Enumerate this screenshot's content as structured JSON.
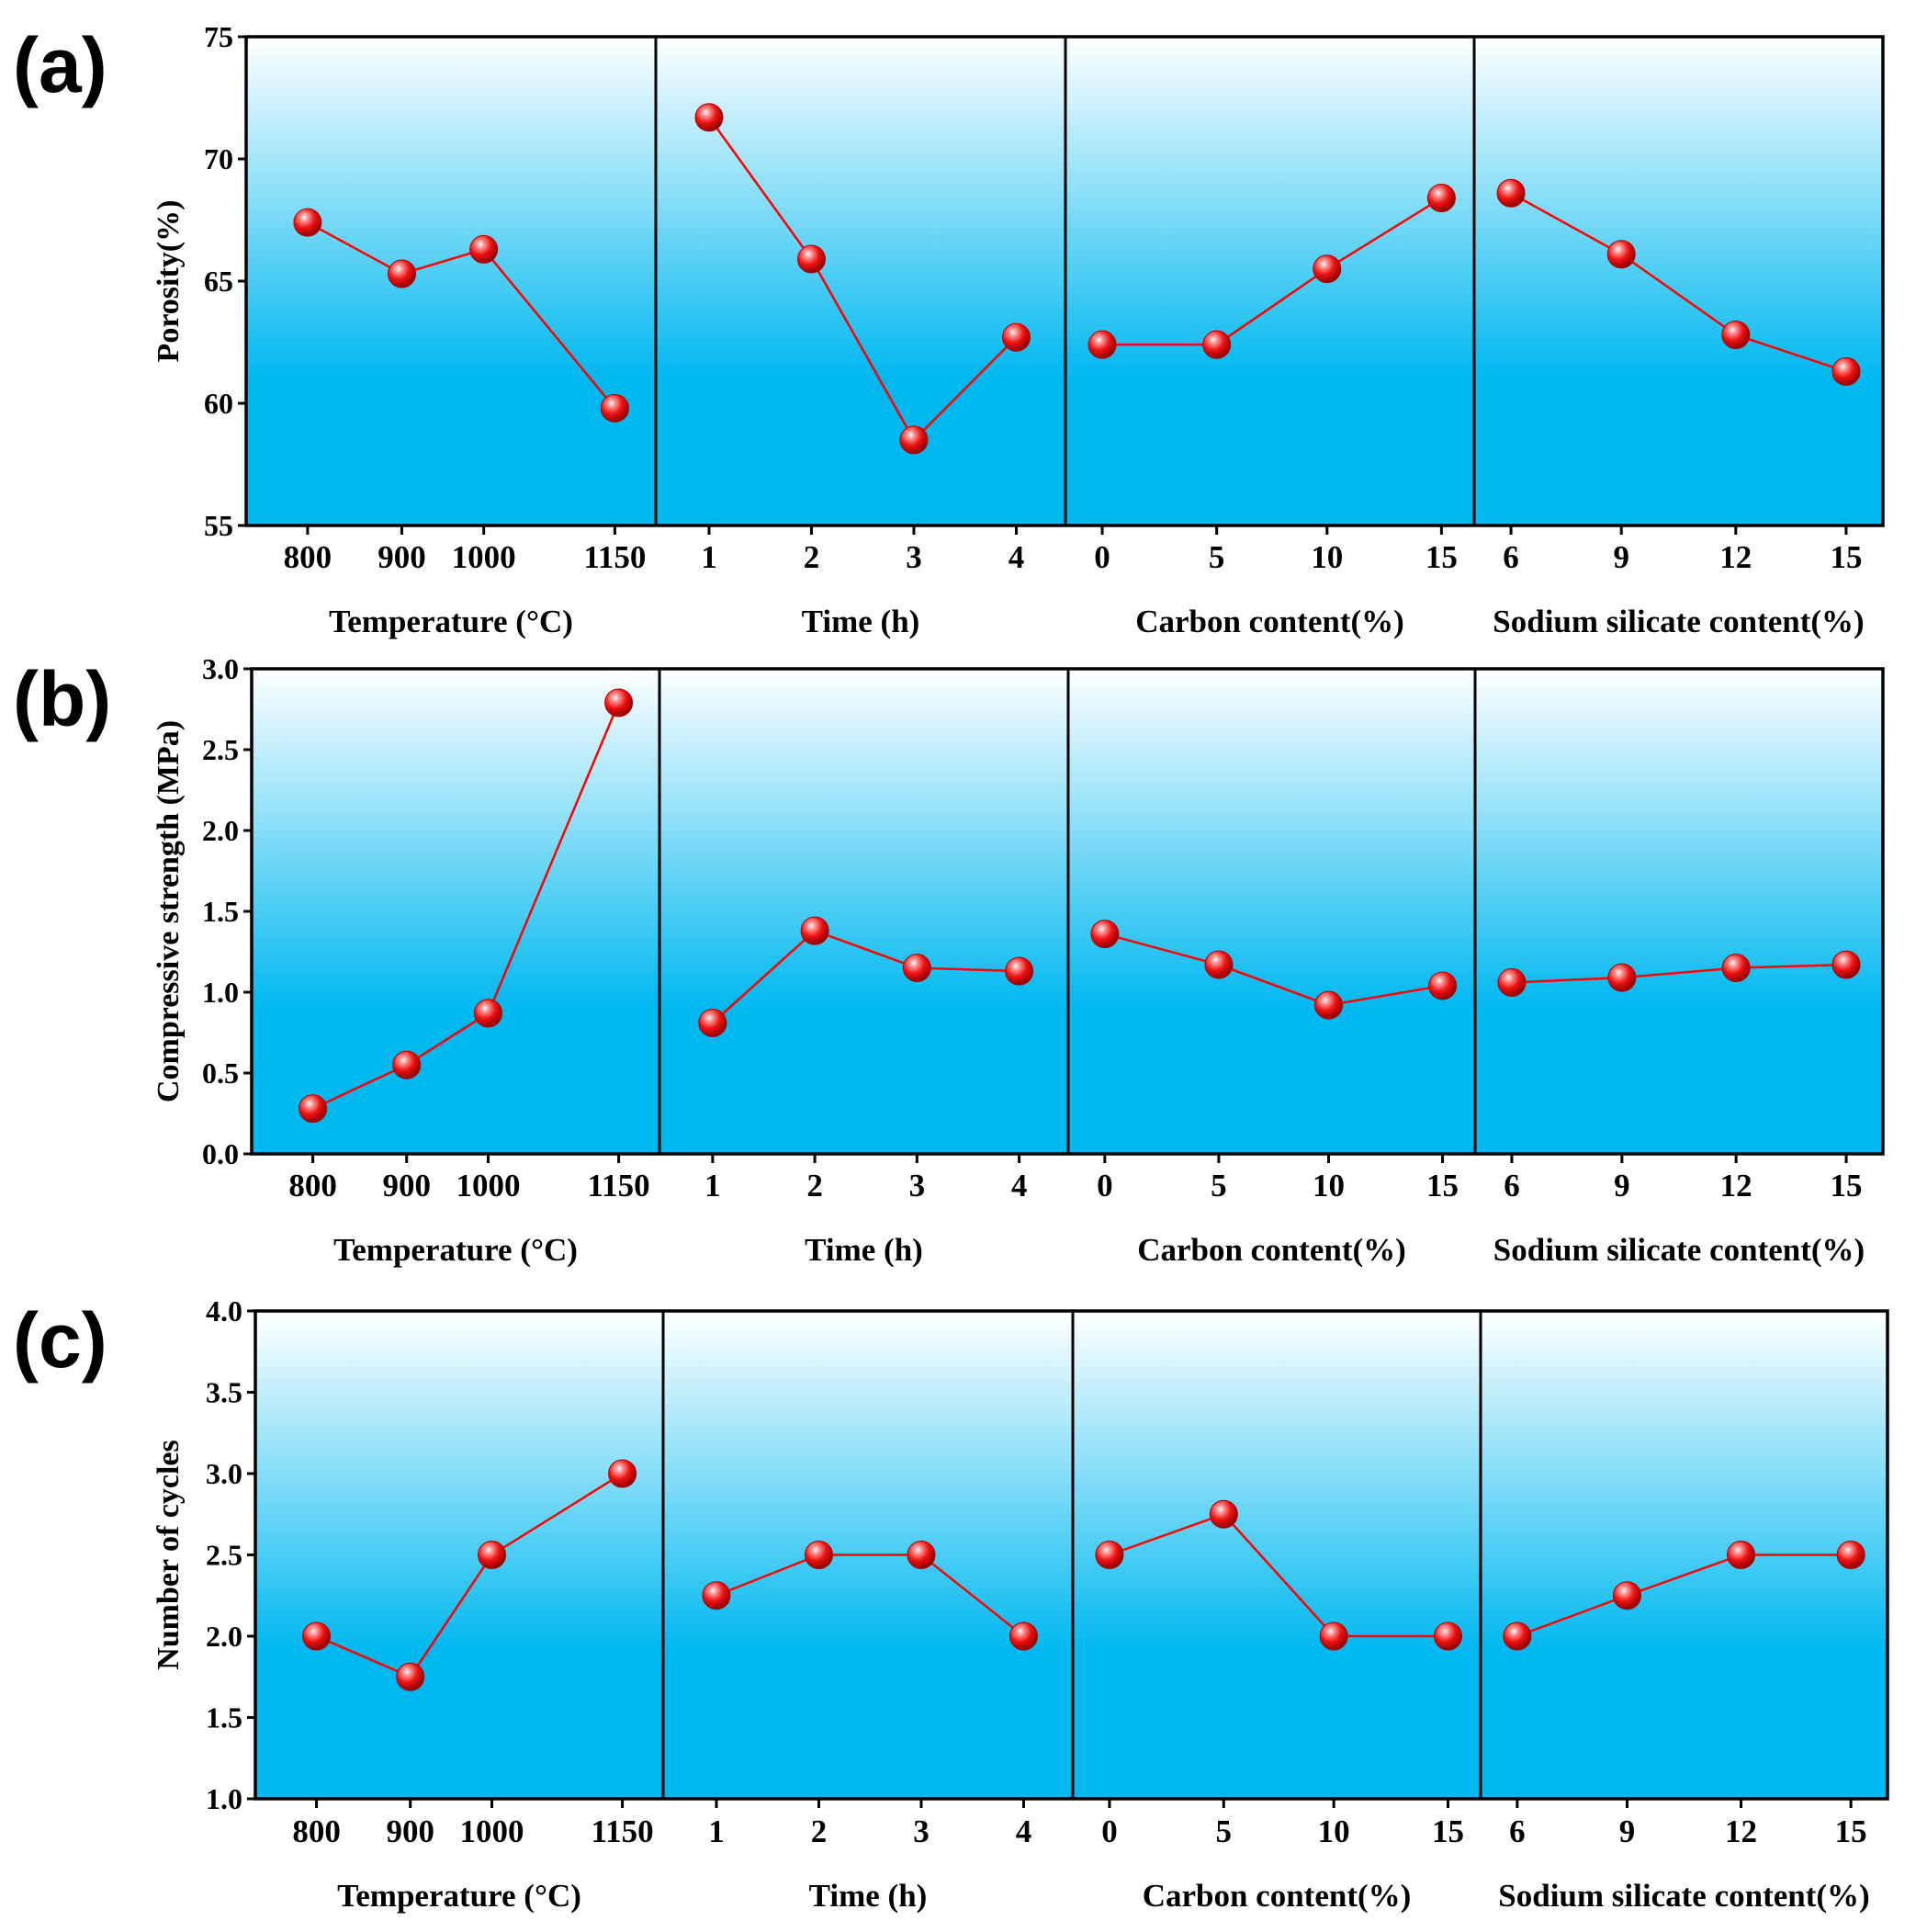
{
  "chart_data": [
    {
      "type": "line",
      "panel_label": "(a)",
      "ylabel": "Porosity(%)",
      "ylim": [
        55,
        75
      ],
      "yticks": [
        55,
        60,
        65,
        70,
        75
      ],
      "subplots": [
        {
          "xlabel": "Temperature (°C)",
          "categories": [
            "800",
            "900",
            "1000",
            "1150"
          ],
          "values": [
            67.4,
            65.3,
            66.3,
            59.8
          ]
        },
        {
          "xlabel": "Time (h)",
          "categories": [
            "1",
            "2",
            "3",
            "4"
          ],
          "values": [
            71.7,
            65.9,
            58.5,
            62.7
          ]
        },
        {
          "xlabel": "Carbon content(%)",
          "categories": [
            "0",
            "5",
            "10",
            "15"
          ],
          "values": [
            62.4,
            62.4,
            65.5,
            68.4
          ]
        },
        {
          "xlabel": "Sodium silicate content(%)",
          "categories": [
            "6",
            "9",
            "12",
            "15"
          ],
          "values": [
            68.6,
            66.1,
            62.8,
            61.3
          ]
        }
      ]
    },
    {
      "type": "line",
      "panel_label": "(b)",
      "ylabel": "Compressive strength (MPa)",
      "ylim": [
        0.0,
        3.0
      ],
      "yticks": [
        "0.0",
        "0.5",
        "1.0",
        "1.5",
        "2.0",
        "2.5",
        "3.0"
      ],
      "subplots": [
        {
          "xlabel": "Temperature (°C)",
          "categories": [
            "800",
            "900",
            "1000",
            "1150"
          ],
          "values": [
            0.28,
            0.55,
            0.87,
            2.79
          ]
        },
        {
          "xlabel": "Time (h)",
          "categories": [
            "1",
            "2",
            "3",
            "4"
          ],
          "values": [
            0.81,
            1.38,
            1.15,
            1.13
          ]
        },
        {
          "xlabel": "Carbon content(%)",
          "categories": [
            "0",
            "5",
            "10",
            "15"
          ],
          "values": [
            1.36,
            1.17,
            0.92,
            1.04
          ]
        },
        {
          "xlabel": "Sodium silicate content(%)",
          "categories": [
            "6",
            "9",
            "12",
            "15"
          ],
          "values": [
            1.06,
            1.09,
            1.15,
            1.17
          ]
        }
      ]
    },
    {
      "type": "line",
      "panel_label": "(c)",
      "ylabel": "Number of cycles",
      "ylim": [
        1.0,
        4.0
      ],
      "yticks": [
        "1.0",
        "1.5",
        "2.0",
        "2.5",
        "3.0",
        "3.5",
        "4.0"
      ],
      "subplots": [
        {
          "xlabel": "Temperature (°C)",
          "categories": [
            "800",
            "900",
            "1000",
            "1150"
          ],
          "values": [
            2.0,
            1.75,
            2.5,
            3.0
          ]
        },
        {
          "xlabel": "Time (h)",
          "categories": [
            "1",
            "2",
            "3",
            "4"
          ],
          "values": [
            2.25,
            2.5,
            2.5,
            2.0
          ]
        },
        {
          "xlabel": "Carbon content(%)",
          "categories": [
            "0",
            "5",
            "10",
            "15"
          ],
          "values": [
            2.5,
            2.75,
            2.0,
            2.0
          ]
        },
        {
          "xlabel": "Sodium silicate content(%)",
          "categories": [
            "6",
            "9",
            "12",
            "15"
          ],
          "values": [
            2.0,
            2.25,
            2.5,
            2.5
          ]
        }
      ]
    }
  ],
  "colors": {
    "line": "#ff0000",
    "marker": "#ee1111",
    "gradient_top": "#ffffff",
    "gradient_bottom": "#00b8f0",
    "axis": "#000000"
  }
}
